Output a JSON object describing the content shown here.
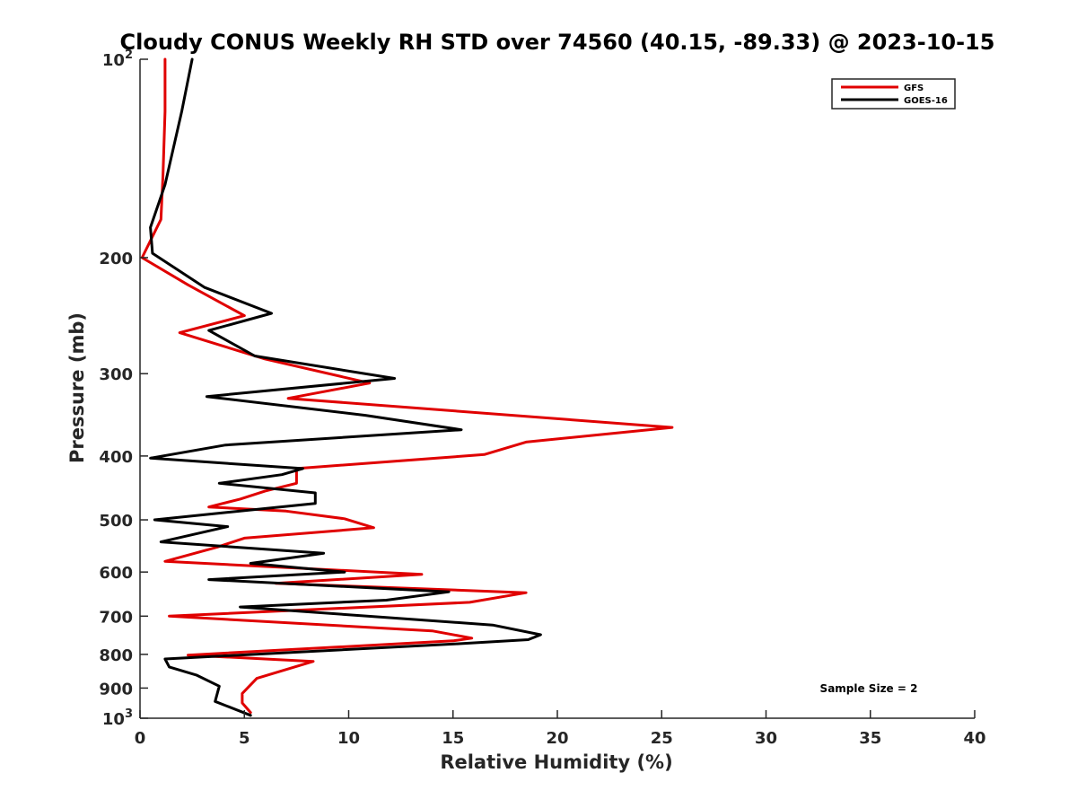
{
  "chart_data": {
    "type": "line",
    "title": "Cloudy CONUS Weekly RH STD over 74560 (40.15, -89.33) @ 2023-10-15",
    "xlabel": "Relative Humidity (%)",
    "ylabel": "Pressure (mb)",
    "xlim": [
      0,
      40
    ],
    "ylim": [
      100,
      1000
    ],
    "y_scale": "log",
    "y_reversed": true,
    "grid": false,
    "legend_position": "top-right",
    "x_ticks": [
      0,
      5,
      10,
      15,
      20,
      25,
      30,
      35,
      40
    ],
    "y_ticks": [
      {
        "value": 100,
        "base": "10",
        "exp": "2"
      },
      {
        "value": 200,
        "label": "200"
      },
      {
        "value": 300,
        "label": "300"
      },
      {
        "value": 400,
        "label": "400"
      },
      {
        "value": 500,
        "label": "500"
      },
      {
        "value": 600,
        "label": "600"
      },
      {
        "value": 700,
        "label": "700"
      },
      {
        "value": 800,
        "label": "800"
      },
      {
        "value": 900,
        "label": "900"
      },
      {
        "value": 1000,
        "base": "10",
        "exp": "3"
      }
    ],
    "annotation": "Sample Size = 2",
    "series": [
      {
        "name": "GFS",
        "color": "#e00000",
        "points": [
          [
            1.2,
            100
          ],
          [
            1.2,
            120
          ],
          [
            1.1,
            150
          ],
          [
            1.0,
            175
          ],
          [
            0.1,
            200
          ],
          [
            2.3,
            220
          ],
          [
            5.0,
            245
          ],
          [
            1.9,
            260
          ],
          [
            6.0,
            285
          ],
          [
            11.0,
            310
          ],
          [
            7.1,
            327
          ],
          [
            25.5,
            362
          ],
          [
            18.5,
            381
          ],
          [
            16.5,
            398
          ],
          [
            7.5,
            418
          ],
          [
            7.5,
            440
          ],
          [
            6.0,
            452
          ],
          [
            4.8,
            465
          ],
          [
            3.3,
            478
          ],
          [
            7.0,
            485
          ],
          [
            9.8,
            498
          ],
          [
            11.2,
            514
          ],
          [
            5.0,
            533
          ],
          [
            3.7,
            550
          ],
          [
            1.2,
            578
          ],
          [
            13.5,
            605
          ],
          [
            6.5,
            624
          ],
          [
            18.5,
            645
          ],
          [
            15.8,
            667
          ],
          [
            1.4,
            700
          ],
          [
            14.0,
            737
          ],
          [
            15.9,
            756
          ],
          [
            15.0,
            763
          ],
          [
            2.3,
            802
          ],
          [
            8.3,
            820
          ],
          [
            7.3,
            838
          ],
          [
            5.6,
            870
          ],
          [
            4.9,
            917
          ],
          [
            4.9,
            948
          ],
          [
            5.3,
            980
          ]
        ]
      },
      {
        "name": "GOES-16",
        "color": "#000000",
        "points": [
          [
            2.5,
            100
          ],
          [
            2.0,
            120
          ],
          [
            1.2,
            155
          ],
          [
            0.5,
            180
          ],
          [
            0.6,
            197
          ],
          [
            3.1,
            222
          ],
          [
            6.3,
            243
          ],
          [
            3.3,
            258
          ],
          [
            5.5,
            282
          ],
          [
            12.2,
            305
          ],
          [
            3.2,
            325
          ],
          [
            10.8,
            347
          ],
          [
            15.4,
            365
          ],
          [
            4.1,
            385
          ],
          [
            0.5,
            403
          ],
          [
            7.8,
            418
          ],
          [
            6.8,
            427
          ],
          [
            3.8,
            440
          ],
          [
            8.4,
            455
          ],
          [
            8.4,
            472
          ],
          [
            0.7,
            500
          ],
          [
            4.2,
            512
          ],
          [
            1.0,
            540
          ],
          [
            8.8,
            562
          ],
          [
            5.3,
            582
          ],
          [
            9.8,
            600
          ],
          [
            3.3,
            616
          ],
          [
            14.8,
            643
          ],
          [
            11.8,
            662
          ],
          [
            4.8,
            678
          ],
          [
            16.9,
            722
          ],
          [
            19.2,
            747
          ],
          [
            18.6,
            760
          ],
          [
            15.2,
            771
          ],
          [
            1.2,
            813
          ],
          [
            1.4,
            836
          ],
          [
            2.7,
            860
          ],
          [
            3.8,
            894
          ],
          [
            3.6,
            943
          ],
          [
            5.3,
            990
          ]
        ]
      }
    ]
  }
}
